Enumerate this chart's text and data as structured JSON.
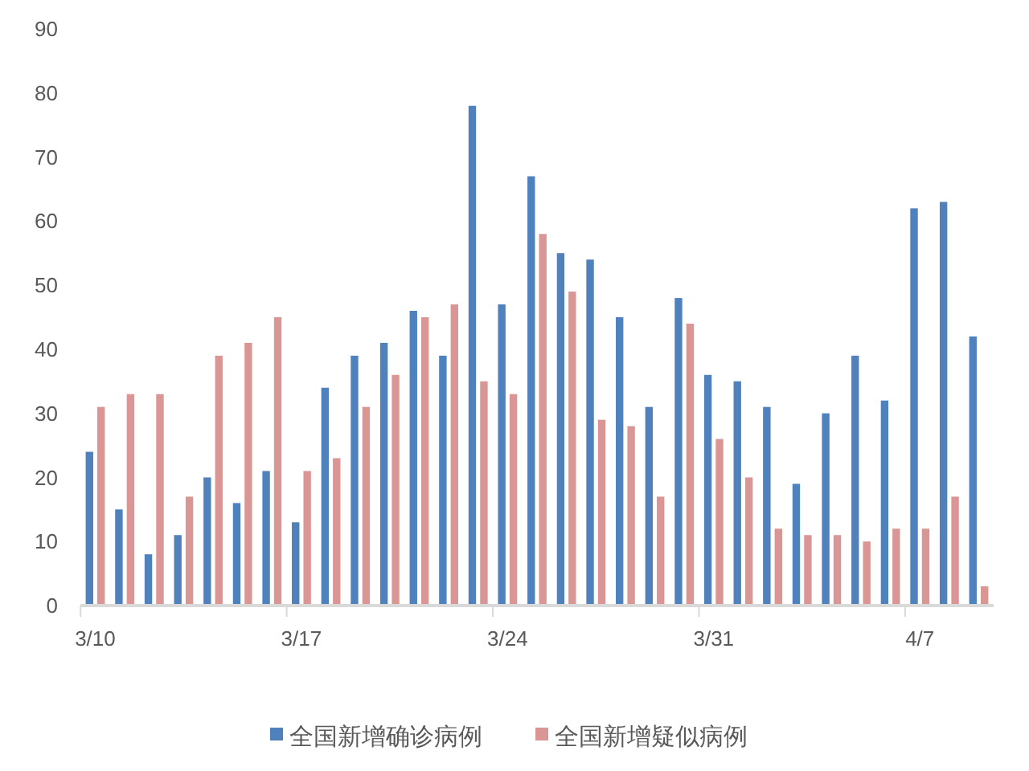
{
  "chart_data": {
    "type": "bar",
    "categories": [
      "3/10",
      null,
      null,
      null,
      null,
      null,
      null,
      "3/17",
      null,
      null,
      null,
      null,
      null,
      null,
      "3/24",
      null,
      null,
      null,
      null,
      null,
      null,
      "3/31",
      null,
      null,
      null,
      null,
      null,
      null,
      "4/7",
      null,
      null
    ],
    "series": [
      {
        "name": "全国新增确诊病例",
        "color": "#4f81bd",
        "values": [
          24,
          15,
          8,
          11,
          20,
          16,
          21,
          13,
          34,
          39,
          41,
          46,
          39,
          78,
          47,
          67,
          55,
          54,
          45,
          31,
          48,
          36,
          35,
          31,
          19,
          30,
          39,
          32,
          62,
          63,
          42
        ]
      },
      {
        "name": "全国新增疑似病例",
        "color": "#d99694",
        "values": [
          31,
          33,
          33,
          17,
          39,
          41,
          45,
          21,
          23,
          31,
          36,
          45,
          47,
          35,
          33,
          58,
          49,
          29,
          28,
          17,
          44,
          26,
          20,
          12,
          11,
          11,
          10,
          12,
          12,
          17,
          3
        ]
      }
    ],
    "ylim": [
      0,
      90
    ],
    "yticks": [
      0,
      10,
      20,
      30,
      40,
      50,
      60,
      70,
      80,
      90
    ],
    "grid": false,
    "legend": "bottom"
  }
}
